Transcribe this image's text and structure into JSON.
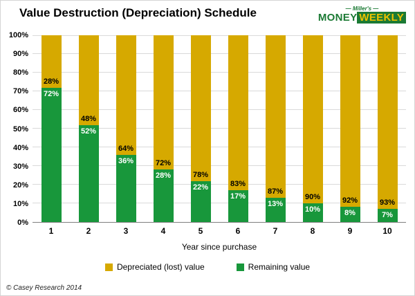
{
  "header": {
    "title": "Value Destruction (Depreciation) Schedule",
    "logo": {
      "brand_top": "— Miller's —",
      "brand_money": "MONEY",
      "brand_weekly": "WEEKLY",
      "green": "#1b7a34",
      "gold": "#eec200"
    }
  },
  "chart_data": {
    "type": "bar",
    "stacked": true,
    "title": "Value Destruction (Depreciation) Schedule",
    "categories": [
      "1",
      "2",
      "3",
      "4",
      "5",
      "6",
      "7",
      "8",
      "9",
      "10"
    ],
    "series": [
      {
        "name": "Remaining value",
        "color": "#18973b",
        "label_color": "#ffffff",
        "values": [
          72,
          52,
          36,
          28,
          22,
          17,
          13,
          10,
          8,
          7
        ]
      },
      {
        "name": "Depreciated (lost) value",
        "color": "#d6a900",
        "label_color": "#000000",
        "values": [
          28,
          48,
          64,
          72,
          78,
          83,
          87,
          90,
          92,
          93
        ]
      }
    ],
    "xlabel": "Year since purchase",
    "ylabel": "",
    "ylim": [
      0,
      100
    ],
    "ytick_step": 10,
    "ytick_suffix": "%",
    "grid": true,
    "legend_position": "bottom"
  },
  "legend": {
    "items": [
      {
        "label": "Depreciated (lost) value",
        "color": "#d6a900"
      },
      {
        "label": "Remaining value",
        "color": "#18973b"
      }
    ]
  },
  "footer": {
    "copyright": "© Casey Research 2014"
  }
}
